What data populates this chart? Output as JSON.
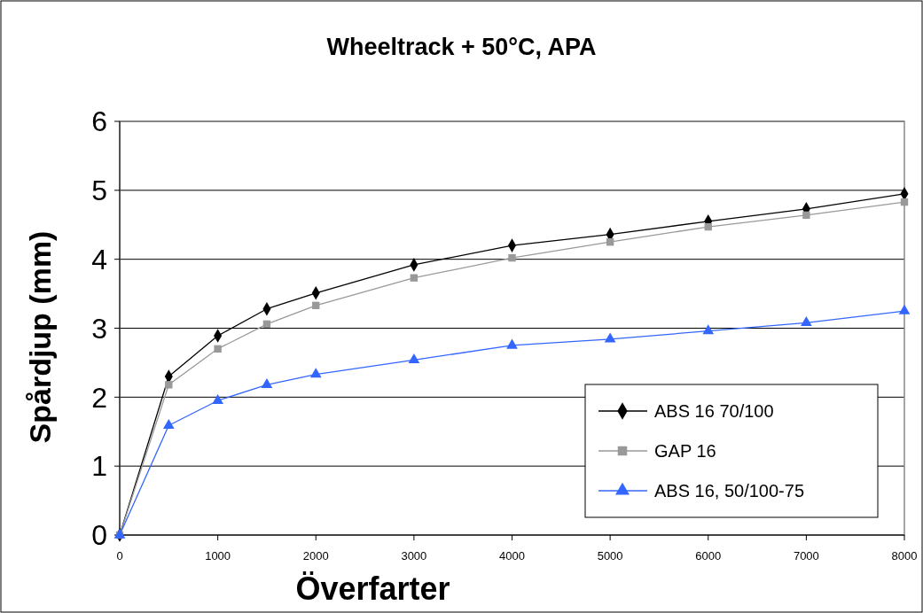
{
  "chart_data": {
    "type": "line",
    "title": "Wheeltrack + 50°C, APA",
    "xlabel": "Överfarter",
    "ylabel": "Spårdjup (mm)",
    "x": [
      0,
      500,
      1000,
      1500,
      2000,
      3000,
      4000,
      5000,
      6000,
      7000,
      8000
    ],
    "series": [
      {
        "name": "ABS 16 70/100",
        "color": "#000000",
        "marker": "diamond",
        "values": [
          0,
          2.3,
          2.89,
          3.28,
          3.51,
          3.92,
          4.2,
          4.36,
          4.55,
          4.73,
          4.95
        ]
      },
      {
        "name": "GAP 16",
        "color": "#999999",
        "marker": "square",
        "values": [
          0,
          2.18,
          2.7,
          3.06,
          3.33,
          3.73,
          4.02,
          4.25,
          4.47,
          4.64,
          4.83
        ]
      },
      {
        "name": "ABS 16, 50/100-75",
        "color": "#3366ff",
        "marker": "triangle",
        "values": [
          0,
          1.59,
          1.95,
          2.18,
          2.33,
          2.54,
          2.75,
          2.84,
          2.96,
          3.08,
          3.25
        ]
      }
    ],
    "xlim": [
      0,
      8000
    ],
    "xticks": [
      0,
      1000,
      2000,
      3000,
      4000,
      5000,
      6000,
      7000,
      8000
    ],
    "ylim": [
      0,
      6
    ],
    "yticks": [
      0,
      1,
      2,
      3,
      4,
      5,
      6
    ],
    "grid": "y",
    "legend": "bottom right"
  }
}
